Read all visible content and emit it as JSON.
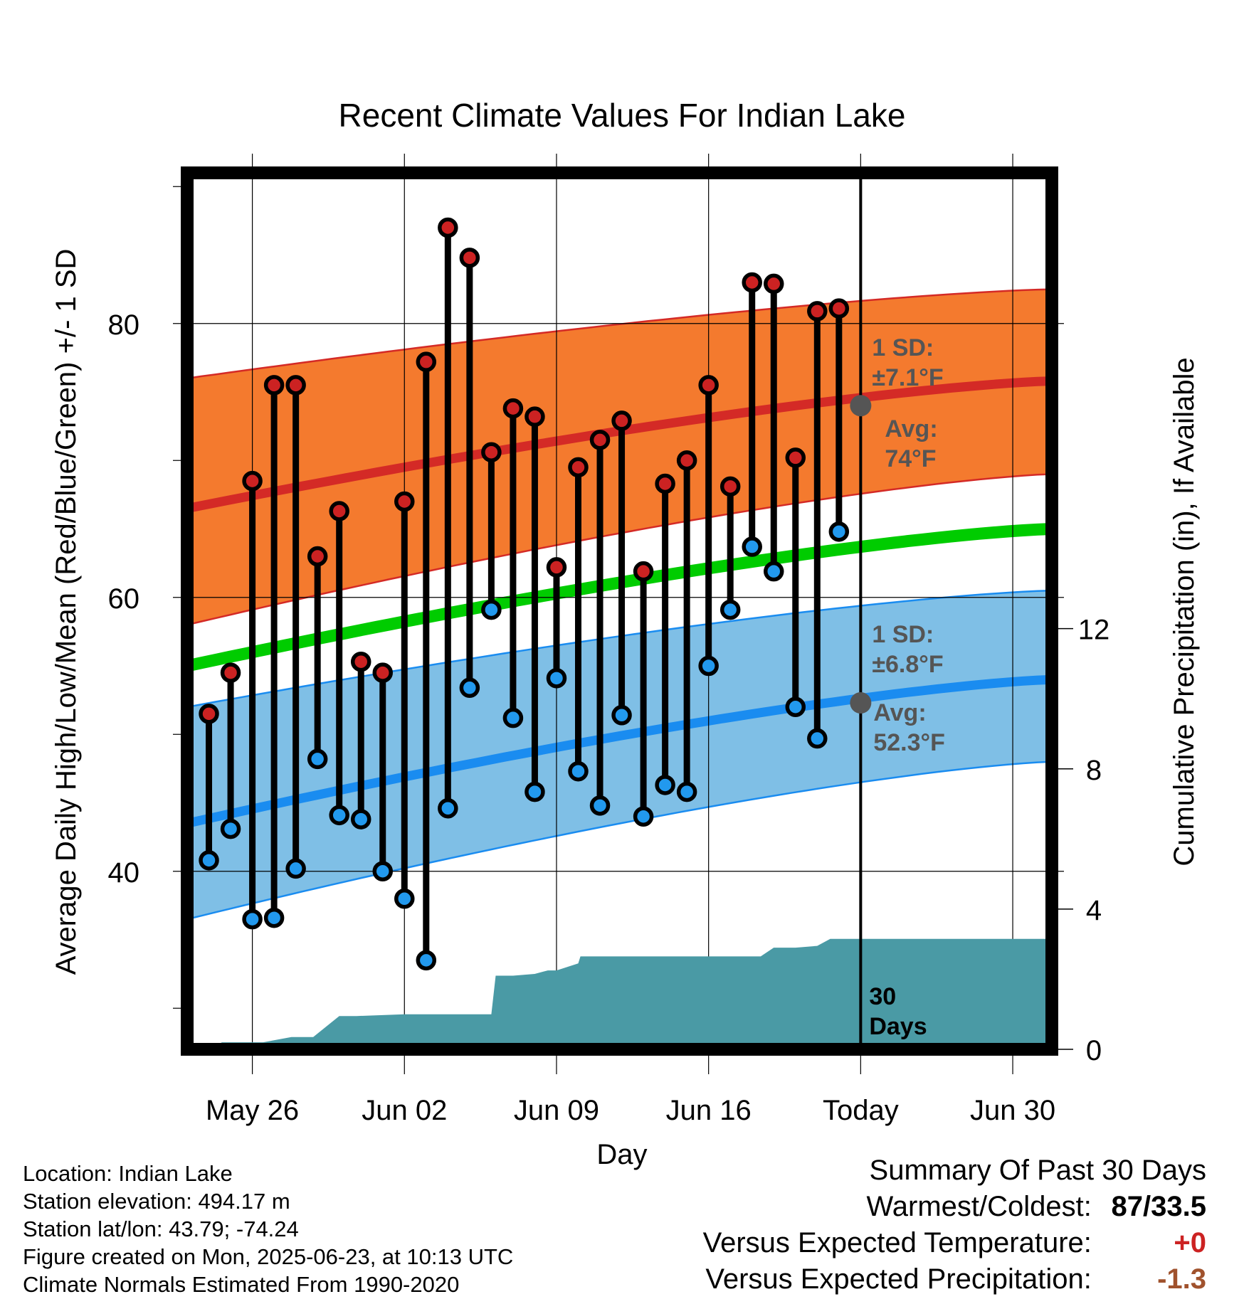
{
  "chart_data": {
    "type": "line",
    "title": "Recent Climate Values For Indian Lake",
    "xlabel": "Day",
    "ylabel": "Average Daily High/Low/Mean (Red/Blue/Green) +/- 1 SD",
    "y2label": "Cumulative Precipitation (in), If Available",
    "x_ticks": [
      {
        "day": 5,
        "label": "May 26"
      },
      {
        "day": 12,
        "label": "Jun 02"
      },
      {
        "day": 19,
        "label": "Jun 09"
      },
      {
        "day": 26,
        "label": "Jun 16"
      },
      {
        "day": 33,
        "label": "Today"
      },
      {
        "day": 40,
        "label": "Jun 30"
      }
    ],
    "xlim": [
      2,
      41.8
    ],
    "ylim": [
      27,
      91
    ],
    "y_ticks": [
      40,
      60,
      80
    ],
    "y2lim": [
      0,
      25
    ],
    "y2_ticks": [
      0,
      4,
      8,
      12
    ],
    "normals": {
      "high_avg": {
        "start": 66.5,
        "end": 75.8
      },
      "high_sd_band": {
        "lower_start": 58.0,
        "lower_end": 69.0,
        "upper_start": 76.0,
        "upper_end": 82.5
      },
      "mean_avg": {
        "start": 55.0,
        "end": 65.0
      },
      "low_avg": {
        "start": 43.5,
        "end": 54.0
      },
      "low_sd_band": {
        "lower_start": 36.5,
        "lower_end": 48.0,
        "upper_start": 52.0,
        "upper_end": 60.5
      }
    },
    "observations": {
      "days": [
        3,
        4,
        5,
        6,
        7,
        8,
        9,
        10,
        11,
        12,
        13,
        14,
        15,
        16,
        17,
        18,
        19,
        20,
        21,
        22,
        23,
        24,
        25,
        26,
        27,
        28,
        29,
        30,
        31,
        32
      ],
      "highs": [
        51.5,
        54.5,
        68.5,
        75.5,
        75.5,
        63.0,
        66.3,
        55.3,
        54.5,
        67.0,
        77.2,
        87.0,
        84.8,
        70.6,
        73.8,
        73.2,
        62.2,
        69.5,
        71.5,
        72.9,
        61.9,
        68.3,
        70.0,
        75.5,
        68.1,
        83.0,
        82.9,
        70.2,
        80.9,
        81.1
      ],
      "lows": [
        40.8,
        43.1,
        36.5,
        36.6,
        40.2,
        48.2,
        44.1,
        43.8,
        40.0,
        38.0,
        33.5,
        44.6,
        53.4,
        59.1,
        51.2,
        45.8,
        54.1,
        47.3,
        44.8,
        51.4,
        44.0,
        46.3,
        45.8,
        55.0,
        59.1,
        63.7,
        61.9,
        52.0,
        49.7,
        64.8
      ]
    },
    "precip_cumulative": {
      "days": [
        2,
        3,
        3.6,
        5.5,
        6.8,
        7.8,
        9.0,
        9.8,
        12.0,
        14.0,
        15.0,
        16.0,
        16.2,
        17.0,
        18.0,
        18.6,
        19.0,
        20.0,
        20.1,
        25.0,
        27.0,
        28.0,
        28.4,
        29.0,
        30.0,
        31.0,
        31.6,
        33.0,
        41.8
      ],
      "values": [
        0,
        0,
        0.2,
        0.2,
        0.35,
        0.35,
        0.95,
        0.95,
        1.0,
        1.0,
        1.0,
        1.0,
        2.1,
        2.1,
        2.15,
        2.25,
        2.25,
        2.45,
        2.65,
        2.65,
        2.65,
        2.65,
        2.65,
        2.9,
        2.9,
        2.95,
        3.15,
        3.15,
        3.15
      ]
    },
    "today_line_day": 33,
    "annotations": {
      "high_sd_line1": "1 SD:",
      "high_sd_line2": "±7.1°F",
      "high_avg_line1": "Avg:",
      "high_avg_line2": "74°F",
      "high_avg_value": 74,
      "low_sd_line1": "1 SD:",
      "low_sd_line2": "±6.8°F",
      "low_avg_line1": "Avg:",
      "low_avg_line2": "52.3°F",
      "low_avg_value": 52.3,
      "days_line1": "30",
      "days_line2": "Days"
    },
    "colors": {
      "high_band": "#f47a2e",
      "high_line": "#d42a26",
      "mean_line": "#00cc00",
      "low_band": "#7fbfe6",
      "low_line": "#1a8cf0",
      "precip": "#4a9aa5",
      "high_marker": "#cc2222",
      "low_marker": "#2299ee",
      "avg_marker": "#555555"
    }
  },
  "footer": {
    "location": "Location: Indian Lake",
    "elevation": "Station elevation: 494.17 m",
    "latlon": "Station lat/lon: 43.79; -74.24",
    "created": "Figure created on Mon, 2025-06-23, at 10:13 UTC",
    "normals": "Climate Normals Estimated From 1990-2020"
  },
  "summary": {
    "title": "Summary Of Past 30 Days",
    "warmest_label": "Warmest/Coldest:",
    "warmest_value": "87/33.5",
    "temp_label": "Versus Expected Temperature:",
    "temp_value": "+0",
    "temp_color": "#cc2222",
    "precip_label": "Versus Expected Precipitation:",
    "precip_value": "-1.3",
    "precip_color": "#a0522d"
  }
}
